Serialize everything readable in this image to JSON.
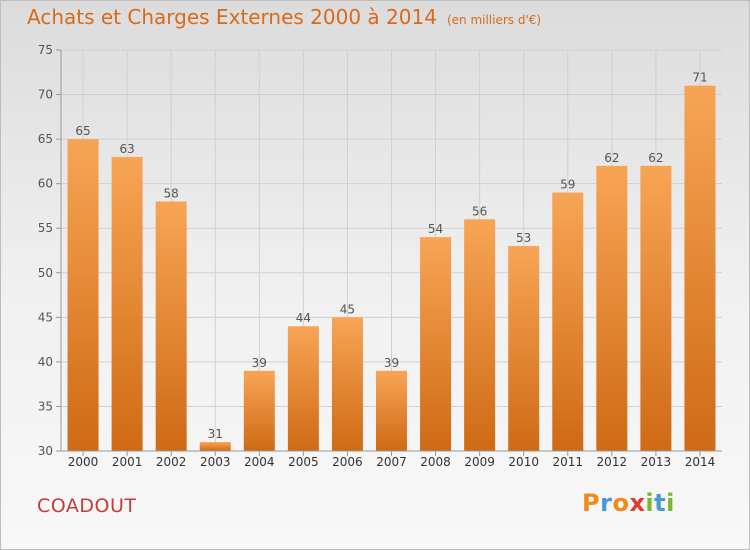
{
  "header": {
    "title": "Achats et Charges Externes 2000 à 2014",
    "unit": "(en milliers d'€)"
  },
  "footer": {
    "place": "COADOUT",
    "logo": {
      "letters": [
        "P",
        "r",
        "o",
        "x",
        "i",
        "t",
        "i"
      ],
      "colors": [
        "#f08a19",
        "#4a97d6",
        "#f08a19",
        "#e23a2c",
        "#7ab833",
        "#4a97d6",
        "#7ab833"
      ]
    }
  },
  "colors": {
    "bar_light": "#f7a555",
    "bar_dark": "#cf6a15",
    "text": "#d86b1a",
    "place": "#c53a3a"
  },
  "chart_data": {
    "type": "bar",
    "categories": [
      "2000",
      "2001",
      "2002",
      "2003",
      "2004",
      "2005",
      "2006",
      "2007",
      "2008",
      "2009",
      "2010",
      "2011",
      "2012",
      "2013",
      "2014"
    ],
    "values": [
      65,
      63,
      58,
      31,
      39,
      44,
      45,
      39,
      54,
      56,
      53,
      59,
      62,
      62,
      71
    ],
    "ylim": [
      30,
      75
    ],
    "yticks": [
      30,
      35,
      40,
      45,
      50,
      55,
      60,
      65,
      70,
      75
    ],
    "grid": true,
    "data_labels": true
  }
}
